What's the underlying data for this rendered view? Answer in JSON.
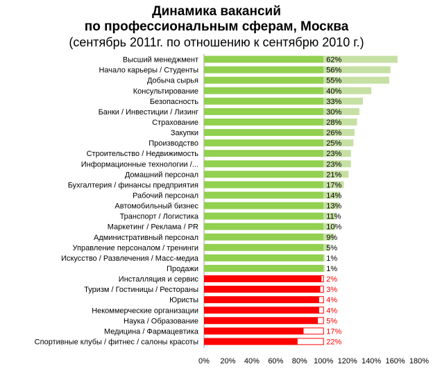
{
  "chart_data": {
    "type": "bar",
    "orientation": "horizontal",
    "title": [
      "Динамика вакансий",
      "по профессиональным сферам, Москва"
    ],
    "subtitle": "(сентябрь 2011г. по отношению к сентябрю 2010 г.)",
    "xlabel": "",
    "ylabel": "",
    "xlim": [
      0,
      180
    ],
    "x_ticks": [
      "0%",
      "20%",
      "40%",
      "60%",
      "80%",
      "100%",
      "120%",
      "140%",
      "160%",
      "180%"
    ],
    "grid": false,
    "legend": "none",
    "colors": {
      "growth_fill": "#92d050",
      "growth_delta": "#c6e0a4",
      "decline_fill": "#ff0000",
      "decline_outline": "#ff0000",
      "decline_label": "#ff0000",
      "axis": "#999999"
    },
    "categories": [
      "Высший менеджмент",
      "Начало карьеры / Студенты",
      "Добыча сырья",
      "Консультирование",
      "Безопасность",
      "Банки / Инвестиции / Лизинг",
      "Страхование",
      "Закупки",
      "Производство",
      "Строительство / Недвижимость",
      "Информационные технологии /...",
      "Домашний персонал",
      "Бухгалтерия / финансы предприятия",
      "Рабочий персонал",
      "Автомобильный бизнес",
      "Транспорт / Логистика",
      "Маркетинг / Реклама / PR",
      "Административный персонал",
      "Управление персоналом / тренинги",
      "Искусство / Развлечения / Масс-медиа",
      "Продажи",
      "Инсталляция и сервис",
      "Туризм / Гостиницы / Рестораны",
      "Юристы",
      "Некоммерческие организации",
      "Наука / Образование",
      "Медицина / Фармацевтика",
      "Спортивные клубы / фитнес / салоны красоты"
    ],
    "values": [
      162,
      156,
      155,
      140,
      133,
      130,
      128,
      126,
      125,
      123,
      123,
      121,
      117,
      114,
      113,
      111,
      110,
      109,
      105,
      101,
      101,
      98,
      97,
      96,
      96,
      95,
      83,
      78
    ],
    "change_labels": [
      "62%",
      "56%",
      "55%",
      "40%",
      "33%",
      "30%",
      "28%",
      "26%",
      "25%",
      "23%",
      "23%",
      "21%",
      "17%",
      "14%",
      "13%",
      "11%",
      "10%",
      "9%",
      "5%",
      "1%",
      "1%",
      "2%",
      "3%",
      "4%",
      "4%",
      "5%",
      "17%",
      "22%"
    ],
    "direction": [
      "up",
      "up",
      "up",
      "up",
      "up",
      "up",
      "up",
      "up",
      "up",
      "up",
      "up",
      "up",
      "up",
      "up",
      "up",
      "up",
      "up",
      "up",
      "up",
      "up",
      "up",
      "down",
      "down",
      "down",
      "down",
      "down",
      "down",
      "down"
    ]
  }
}
